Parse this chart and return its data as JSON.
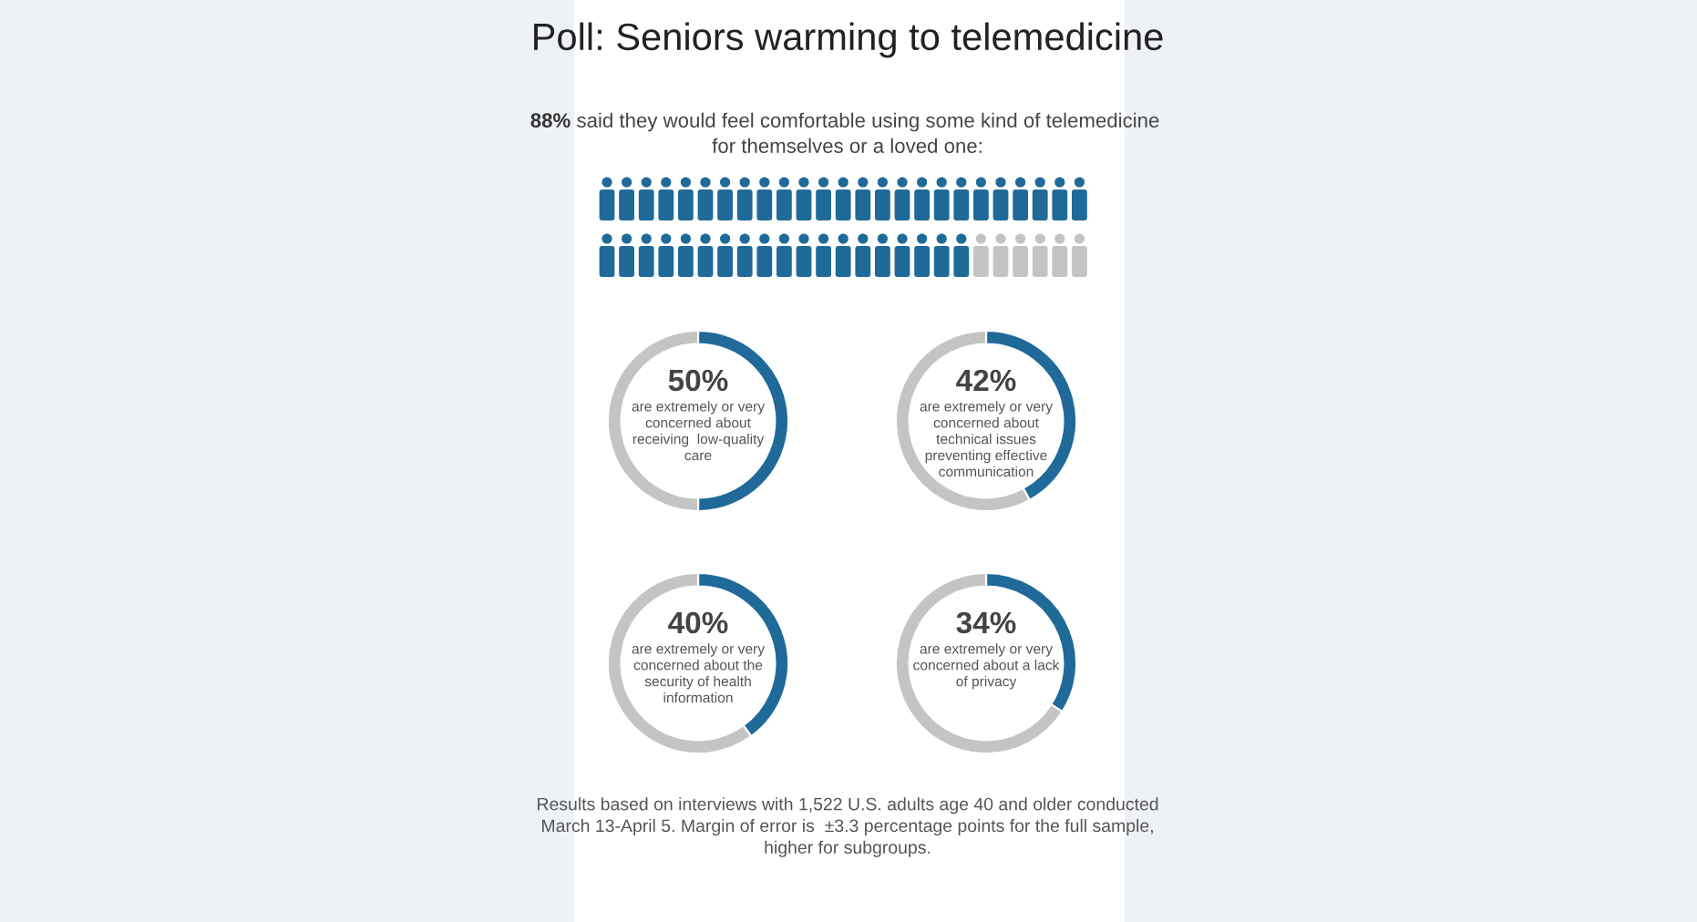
{
  "chart_data": [
    {
      "type": "other",
      "title": "Poll: Seniors warming to telemedicine",
      "values": [
        88
      ],
      "value_labels": [
        "88%"
      ],
      "color": "#1f6a99",
      "annotations": [
        "said they would feel comfortable using some kind of telemedicine\nfor themselves or a loved one:",
        "Results based on interviews with 1,522 U.S. adults age 40 and older conducted\nMarch 13-April 5. Margin of error is  ±3.3 percentage points for the full sample,\nhigher for subgroups."
      ]
    },
    {
      "type": "donut",
      "categories": [
        null,
        null
      ],
      "values": [
        50,
        50
      ],
      "colors": [
        "#1f6a99",
        "#c4c4c4"
      ],
      "value_labels": [
        "50%",
        null
      ],
      "annotations": [
        "are extremely or very\nconcerned about\nreceiving  low-quality\ncare"
      ]
    },
    {
      "type": "donut",
      "categories": [
        null,
        null
      ],
      "values": [
        42,
        58
      ],
      "colors": [
        "#1f6a99",
        "#c4c4c4"
      ],
      "value_labels": [
        "42%",
        null
      ],
      "annotations": [
        "are extremely or very\nconcerned about\ntechnical issues\npreventing effective\ncommunication"
      ]
    },
    {
      "type": "donut",
      "categories": [
        null,
        null
      ],
      "values": [
        40,
        60
      ],
      "colors": [
        "#1f6a99",
        "#c4c4c4"
      ],
      "value_labels": [
        "40%",
        null
      ],
      "annotations": [
        "are extremely or very\nconcerned about the\nsecurity of health\ninformation"
      ]
    },
    {
      "type": "donut",
      "categories": [
        null,
        null
      ],
      "values": [
        34,
        66
      ],
      "colors": [
        "#1f6a99",
        "#c4c4c4"
      ],
      "value_labels": [
        "34%",
        null
      ],
      "annotations": [
        "are extremely or very\nconcerned about a lack\nof privacy"
      ]
    }
  ]
}
